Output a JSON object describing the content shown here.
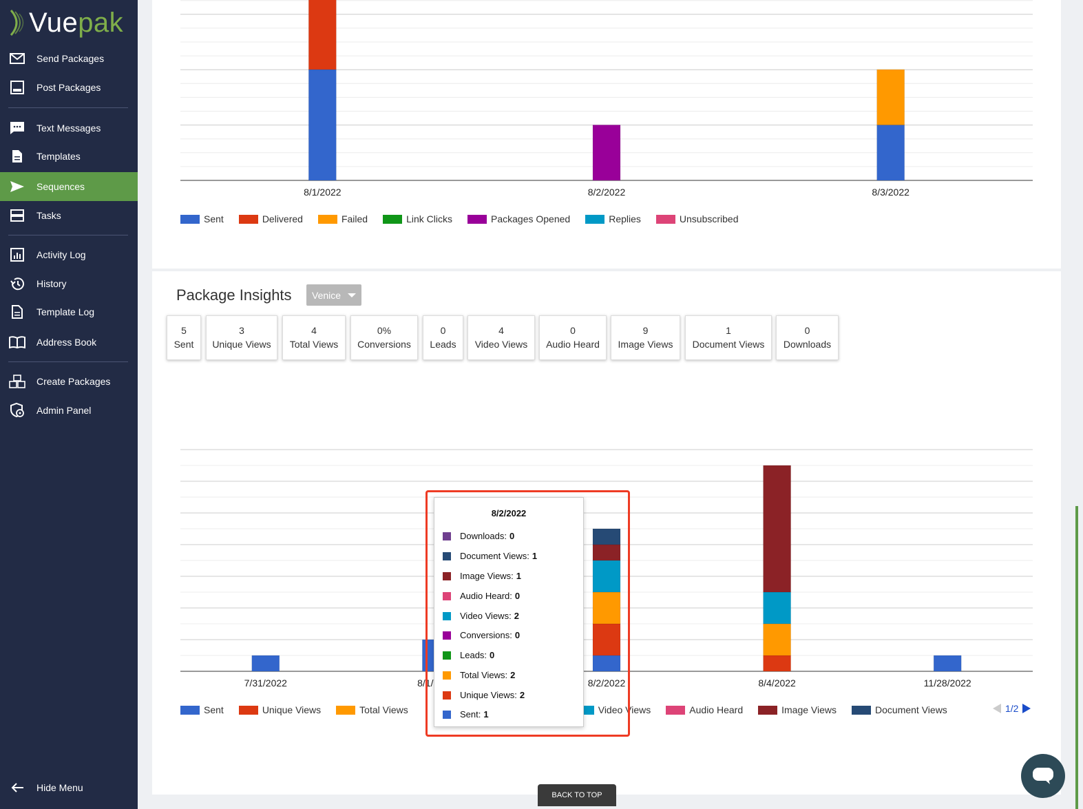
{
  "app": {
    "logo_vue": "Vue",
    "logo_pak": "pak"
  },
  "sidebar": {
    "items": [
      {
        "label": "Send Packages",
        "icon": "envelope-icon"
      },
      {
        "label": "Post Packages",
        "icon": "post-icon"
      },
      {
        "label": "Text Messages",
        "icon": "chat-icon"
      },
      {
        "label": "Templates",
        "icon": "document-icon"
      },
      {
        "label": "Sequences",
        "icon": "send-icon",
        "active": true
      },
      {
        "label": "Tasks",
        "icon": "tasks-icon"
      },
      {
        "label": "Activity Log",
        "icon": "chart-icon"
      },
      {
        "label": "History",
        "icon": "history-icon"
      },
      {
        "label": "Template Log",
        "icon": "document-icon"
      },
      {
        "label": "Address Book",
        "icon": "book-icon"
      },
      {
        "label": "Create Packages",
        "icon": "boxes-icon"
      },
      {
        "label": "Admin Panel",
        "icon": "shield-gear-icon"
      }
    ],
    "hide_menu": "Hide Menu"
  },
  "chart_data": [
    {
      "type": "bar",
      "stacked": true,
      "categories": [
        "8/1/2022",
        "8/2/2022",
        "8/3/2022"
      ],
      "series": [
        {
          "name": "Sent",
          "color": "#3366cc",
          "values": [
            2,
            0,
            1
          ]
        },
        {
          "name": "Delivered",
          "color": "#dc3912",
          "values": [
            2,
            0,
            0
          ]
        },
        {
          "name": "Failed",
          "color": "#ff9900",
          "values": [
            0,
            0,
            1
          ]
        },
        {
          "name": "Link Clicks",
          "color": "#109618",
          "values": [
            0,
            0,
            0
          ]
        },
        {
          "name": "Packages Opened",
          "color": "#990099",
          "values": [
            0,
            1,
            0
          ]
        },
        {
          "name": "Replies",
          "color": "#0099c6",
          "values": [
            0,
            0,
            0
          ]
        },
        {
          "name": "Unsubscribed",
          "color": "#dd4477",
          "values": [
            0,
            0,
            0
          ]
        }
      ]
    },
    {
      "type": "bar",
      "stacked": true,
      "categories": [
        "7/31/2022",
        "8/1/2022",
        "8/2/2022",
        "8/4/2022",
        "11/28/2022"
      ],
      "series": [
        {
          "name": "Sent",
          "color": "#3366cc",
          "values": [
            1,
            2,
            1,
            0,
            1
          ]
        },
        {
          "name": "Unique Views",
          "color": "#dc3912",
          "values": [
            0,
            0,
            2,
            1,
            0
          ]
        },
        {
          "name": "Total Views",
          "color": "#ff9900",
          "values": [
            0,
            0,
            2,
            2,
            0
          ]
        },
        {
          "name": "Leads",
          "color": "#109618",
          "values": [
            0,
            0,
            0,
            0,
            0
          ]
        },
        {
          "name": "Conversions",
          "color": "#990099",
          "values": [
            0,
            0,
            0,
            0,
            0
          ]
        },
        {
          "name": "Video Views",
          "color": "#0099c6",
          "values": [
            0,
            0,
            2,
            2,
            0
          ]
        },
        {
          "name": "Audio Heard",
          "color": "#dd4477",
          "values": [
            0,
            0,
            0,
            0,
            0
          ]
        },
        {
          "name": "Image Views",
          "color": "#8b2226",
          "values": [
            0,
            0,
            1,
            8,
            0
          ]
        },
        {
          "name": "Document Views",
          "color": "#264a75",
          "values": [
            0,
            0,
            1,
            0,
            0
          ]
        },
        {
          "name": "Downloads",
          "color": "#6f3f8f",
          "values": [
            0,
            0,
            0,
            0,
            0
          ]
        }
      ]
    }
  ],
  "insights": {
    "title": "Package Insights",
    "dropdown": "Venice",
    "stats": [
      {
        "value": "5",
        "label": "Sent"
      },
      {
        "value": "3",
        "label": "Unique Views"
      },
      {
        "value": "4",
        "label": "Total Views"
      },
      {
        "value": "0%",
        "label": "Conversions"
      },
      {
        "value": "0",
        "label": "Leads"
      },
      {
        "value": "4",
        "label": "Video Views"
      },
      {
        "value": "0",
        "label": "Audio Heard"
      },
      {
        "value": "9",
        "label": "Image Views"
      },
      {
        "value": "1",
        "label": "Document Views"
      },
      {
        "value": "0",
        "label": "Downloads"
      }
    ]
  },
  "legend2_visible": [
    "Sent",
    "Unique Views",
    "Total Views",
    "Video Views",
    "Audio Heard",
    "Image Views",
    "Document Views"
  ],
  "pager": "1/2",
  "tooltip": {
    "title": "8/2/2022",
    "rows": [
      {
        "label": "Downloads:",
        "value": "0",
        "color": "#6f3f8f"
      },
      {
        "label": "Document Views:",
        "value": "1",
        "color": "#264a75"
      },
      {
        "label": "Image Views:",
        "value": "1",
        "color": "#8b2226"
      },
      {
        "label": "Audio Heard:",
        "value": "0",
        "color": "#dd4477"
      },
      {
        "label": "Video Views:",
        "value": "2",
        "color": "#0099c6"
      },
      {
        "label": "Conversions:",
        "value": "0",
        "color": "#990099"
      },
      {
        "label": "Leads:",
        "value": "0",
        "color": "#109618"
      },
      {
        "label": "Total Views:",
        "value": "2",
        "color": "#ff9900"
      },
      {
        "label": "Unique Views:",
        "value": "2",
        "color": "#dc3912"
      },
      {
        "label": "Sent:",
        "value": "1",
        "color": "#3366cc"
      }
    ]
  },
  "back_to_top": "BACK TO TOP"
}
